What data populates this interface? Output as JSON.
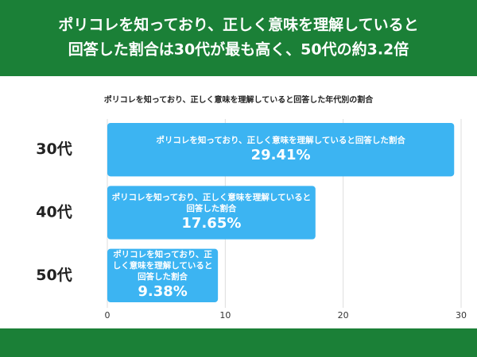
{
  "header": {
    "title_lines": [
      "ポリコレを知っており、正しく意味を理解していると",
      "回答した割合は30代が最も高く、50代の約3.2倍"
    ]
  },
  "chart_data": {
    "type": "bar",
    "orientation": "horizontal",
    "title": "ポリコレを知っており、正しく意味を理解していると回答した年代別の割合",
    "categories": [
      "30代",
      "40代",
      "50代"
    ],
    "series": [
      {
        "name": "ポリコレを知っており、正しく意味を理解していると回答した割合",
        "color": "#3cb4f2",
        "values": [
          29.41,
          17.65,
          9.38
        ],
        "value_labels": [
          "29.41%",
          "17.65%",
          "9.38%"
        ]
      }
    ],
    "xlim": [
      0,
      30
    ],
    "xticks": [
      0,
      10,
      20,
      30
    ],
    "grid": true
  }
}
